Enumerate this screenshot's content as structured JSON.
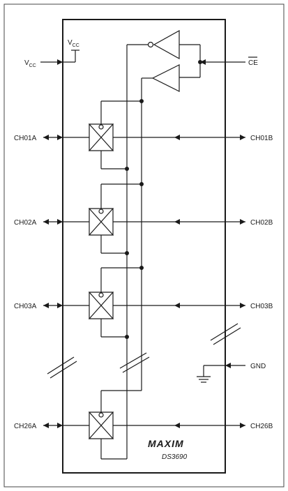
{
  "diagram": {
    "inputs": {
      "vcc_main": "V",
      "vcc_sub": "CC",
      "ce_label": "CE"
    },
    "channels": [
      {
        "left": "CH01A",
        "right": "CH01B"
      },
      {
        "left": "CH02A",
        "right": "CH02B"
      },
      {
        "left": "CH03A",
        "right": "CH03B"
      },
      {
        "left": "CH26A",
        "right": "CH26B"
      }
    ],
    "ground_label": "GND",
    "logo_text": "MAXIM",
    "part_number": "DS3690"
  }
}
